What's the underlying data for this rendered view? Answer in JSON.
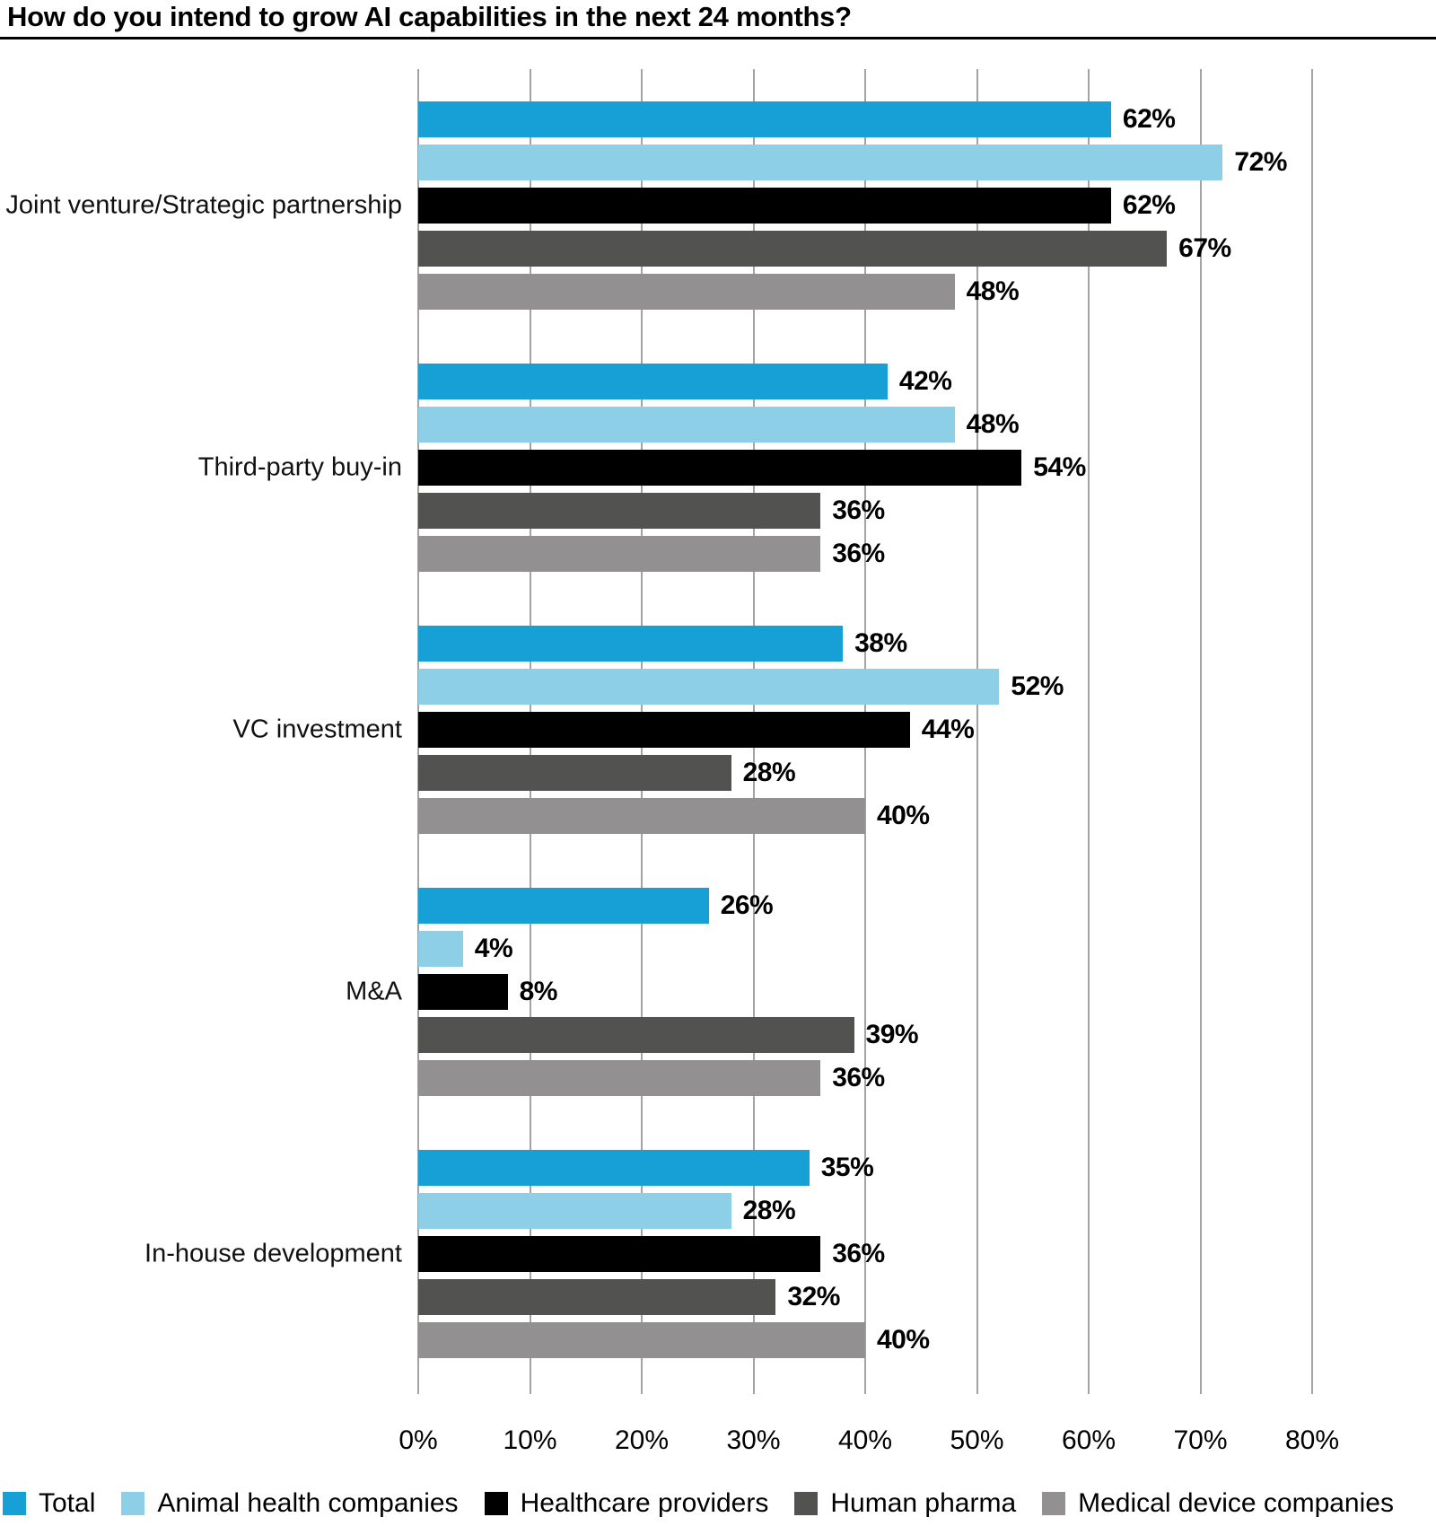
{
  "title": "How do you intend to grow AI capabilities in the next 24 months?",
  "chart_data": {
    "type": "bar",
    "orientation": "horizontal",
    "title": "How do you intend to grow AI capabilities in the next 24 months?",
    "categories": [
      "Joint venture/Strategic partnership",
      "Third-party buy-in",
      "VC investment",
      "M&A",
      "In-house development"
    ],
    "series": [
      {
        "name": "Total",
        "color": "#17A0D6",
        "values": [
          62,
          42,
          38,
          26,
          35
        ]
      },
      {
        "name": "Animal health companies",
        "color": "#8DCFE6",
        "values": [
          72,
          48,
          52,
          4,
          28
        ]
      },
      {
        "name": "Healthcare providers",
        "color": "#000000",
        "values": [
          62,
          54,
          44,
          8,
          36
        ]
      },
      {
        "name": "Human pharma",
        "color": "#525250",
        "values": [
          67,
          36,
          28,
          39,
          32
        ]
      },
      {
        "name": "Medical device companies",
        "color": "#929090",
        "values": [
          48,
          36,
          40,
          36,
          40
        ]
      }
    ],
    "value_suffix": "%",
    "xlabel": "",
    "ylabel": "",
    "xlim": [
      0,
      80
    ],
    "x_ticks": [
      "0%",
      "10%",
      "20%",
      "30%",
      "40%",
      "50%",
      "60%",
      "70%",
      "80%"
    ],
    "grid": true,
    "gridline_color": "#a3a3a3",
    "legend_position": "bottom"
  }
}
